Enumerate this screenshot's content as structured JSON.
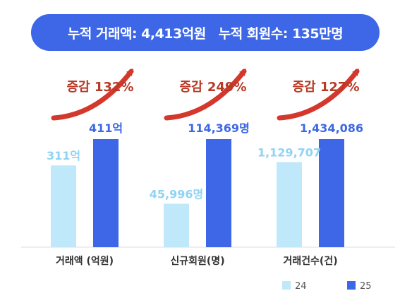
{
  "banner": {
    "text_1": "누적 거래액: 4,413억원",
    "text_2": "누적 회원수: 135만명"
  },
  "colors": {
    "banner": "#3d67e6",
    "series_prev": "#bfe8fb",
    "series_curr": "#3d67e6",
    "prev_label": "#8fd3f4",
    "curr_label": "#3d67e6",
    "arrow": "#d4372c",
    "growth_text": "#b83a26",
    "category_text": "#333333"
  },
  "chart_data": {
    "type": "bar",
    "categories": [
      "거래액 (억원)",
      "신규회원(명)",
      "거래건수(건)"
    ],
    "series": [
      {
        "name": "24",
        "values": [
          311,
          45996,
          1129707
        ],
        "labels": [
          "311억",
          "45,996명",
          "1,129,707"
        ]
      },
      {
        "name": "25",
        "values": [
          411,
          114369,
          1434086
        ],
        "labels": [
          "411억",
          "114,369명",
          "1,434,086"
        ]
      }
    ],
    "growth_labels": [
      "증감 132%",
      "증감 249%",
      "증감 127%"
    ],
    "legend_placement": "bottom-right",
    "grid": false
  }
}
